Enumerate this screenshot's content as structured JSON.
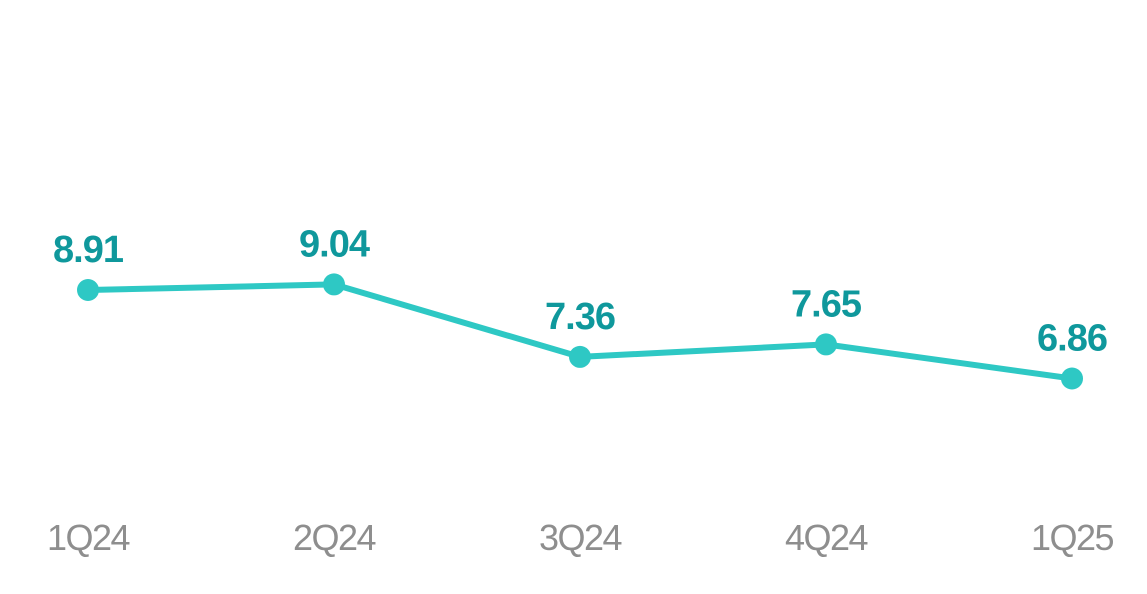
{
  "chart_data": {
    "type": "line",
    "title": "",
    "xlabel": "",
    "ylabel": "",
    "categories": [
      "1Q24",
      "2Q24",
      "3Q24",
      "4Q24",
      "1Q25"
    ],
    "values": [
      8.91,
      9.04,
      7.36,
      7.65,
      6.86
    ],
    "value_labels": [
      "8.91",
      "9.04",
      "7.36",
      "7.65",
      "6.86"
    ],
    "ylim": [
      6.5,
      10.0
    ],
    "grid": false,
    "legend_position": "none",
    "axes_visible": false,
    "colors": {
      "series": "#2ec8c4",
      "value_label": "#0f989c",
      "axis_label": "#8e8e8e",
      "background": "#ffffff"
    }
  }
}
